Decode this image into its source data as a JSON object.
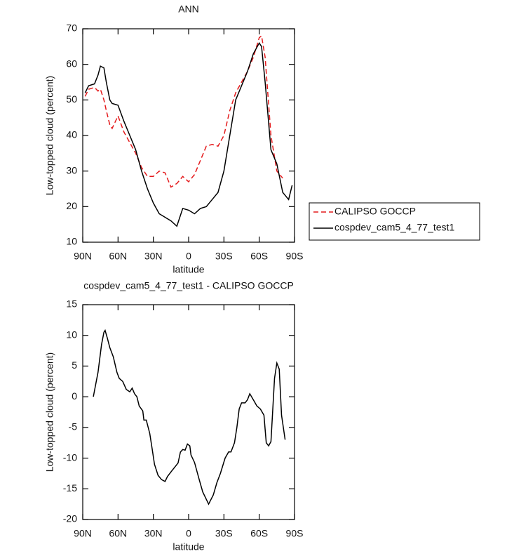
{
  "chart_data": [
    {
      "type": "line",
      "title": "ANN",
      "x_label": "latitude",
      "y_label": "Low-topped cloud (percent)",
      "xlim": [
        90,
        -90
      ],
      "ylim": [
        10,
        70
      ],
      "xticks": [
        {
          "value": 90,
          "label": "90N"
        },
        {
          "value": 60,
          "label": "60N"
        },
        {
          "value": 30,
          "label": "30N"
        },
        0,
        {
          "value": -30,
          "label": "30S"
        },
        {
          "value": -60,
          "label": "60S"
        },
        {
          "value": -90,
          "label": "90S"
        }
      ],
      "yticks": [
        10,
        20,
        30,
        40,
        50,
        60,
        70
      ],
      "legend": "right",
      "x": [
        88,
        85,
        80,
        77,
        75,
        72,
        70,
        67,
        65,
        60,
        55,
        50,
        45,
        40,
        35,
        30,
        25,
        20,
        15,
        10,
        5,
        0,
        -5,
        -10,
        -15,
        -20,
        -25,
        -30,
        -35,
        -40,
        -45,
        -50,
        -55,
        -60,
        -62,
        -65,
        -70,
        -75,
        -80,
        -85,
        -88
      ],
      "series": [
        {
          "name": "CALIPSO GOCCP",
          "color": "#e41a1c",
          "dash": true,
          "values": [
            51,
            53,
            53.5,
            52.5,
            53,
            50,
            47,
            43,
            42,
            45.5,
            41,
            38,
            35,
            31,
            28.5,
            28.5,
            30,
            29.5,
            25.5,
            26.5,
            28.5,
            27,
            29,
            33,
            37,
            37.5,
            37,
            40,
            47,
            52,
            55,
            58,
            62,
            67.5,
            68,
            62,
            40,
            30,
            28,
            null,
            null
          ]
        },
        {
          "name": "cospdev_cam5_4_77_test1",
          "color": "#000000",
          "dash": false,
          "values": [
            52,
            54,
            54.5,
            57,
            59.5,
            59,
            55,
            50,
            49,
            48.5,
            44,
            40,
            36,
            30,
            25,
            21,
            18,
            17,
            16,
            14.5,
            19.5,
            19,
            18,
            19.5,
            20,
            22,
            24,
            30,
            40,
            50,
            54,
            58,
            63,
            66,
            65,
            55,
            36,
            32,
            24,
            22,
            26
          ]
        }
      ]
    },
    {
      "type": "line",
      "title": "cospdev_cam5_4_77_test1 - CALIPSO GOCCP",
      "x_label": "latitude",
      "y_label": "Low-topped cloud (percent)",
      "xlim": [
        90,
        -90
      ],
      "ylim": [
        -20,
        15
      ],
      "xticks": [
        {
          "value": 90,
          "label": "90N"
        },
        {
          "value": 60,
          "label": "60N"
        },
        {
          "value": 30,
          "label": "30N"
        },
        0,
        {
          "value": -30,
          "label": "30S"
        },
        {
          "value": -60,
          "label": "60S"
        },
        {
          "value": -90,
          "label": "90S"
        }
      ],
      "yticks": [
        -20,
        -15,
        -10,
        -5,
        0,
        5,
        10,
        15
      ],
      "x": [
        81,
        77,
        74,
        72,
        71,
        69,
        67,
        64,
        61,
        59,
        56,
        53,
        50,
        48,
        46,
        44,
        42,
        39,
        38,
        36,
        33,
        31,
        29,
        26,
        23,
        20,
        18,
        14,
        9,
        7,
        5,
        3,
        1,
        -1,
        -2,
        -5,
        -9,
        -12,
        -17,
        -21,
        -24,
        -27,
        -31,
        -34,
        -36,
        -39,
        -41,
        -43,
        -45,
        -48,
        -50,
        -52,
        -55,
        -58,
        -61,
        -64,
        -66,
        -68,
        -70,
        -73,
        -75,
        -77,
        -79,
        -82
      ],
      "series": [
        {
          "color": "#000000",
          "dash": false,
          "values": [
            0,
            4,
            8.5,
            10.5,
            10.8,
            9.5,
            8,
            6.5,
            4,
            3,
            2.5,
            1.2,
            0.8,
            1.4,
            0.5,
            0,
            -1.5,
            -2.3,
            -3.8,
            -3.8,
            -6,
            -8.5,
            -11,
            -12.8,
            -13.5,
            -13.8,
            -13,
            -12,
            -10.8,
            -9,
            -8.6,
            -8.7,
            -7.7,
            -8,
            -9.5,
            -10.7,
            -13.5,
            -15.5,
            -17.5,
            -16,
            -14,
            -12.5,
            -10,
            -9,
            -9,
            -7.5,
            -5,
            -2,
            -1,
            -1,
            -0.5,
            0.5,
            -0.5,
            -1.5,
            -2,
            -3,
            -7.5,
            -8,
            -7.3,
            3,
            5.5,
            4.5,
            -3,
            -7
          ]
        }
      ]
    }
  ]
}
